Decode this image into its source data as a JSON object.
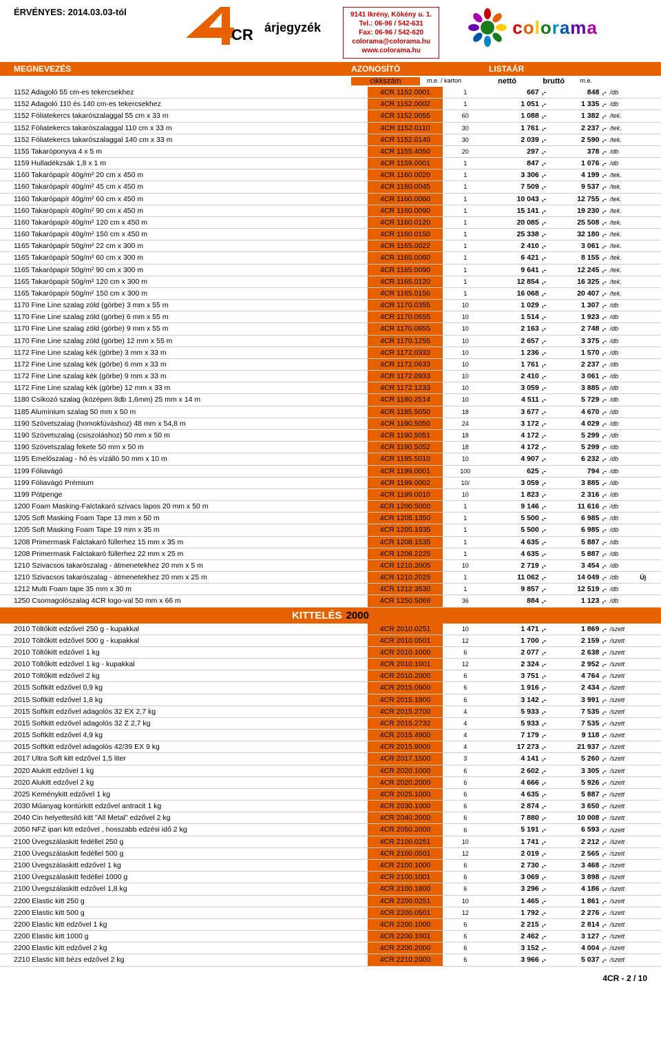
{
  "header": {
    "valid": "ÉRVÉNYES: 2014.03.03-tól",
    "pricelist": "árjegyzék",
    "address": {
      "l1": "9141 Ikrény, Kökény u. 1.",
      "l2": "Tel.: 06-96 / 542-631",
      "l3": "Fax: 06-96 / 542-620",
      "l4": "colorama@colorama.hu",
      "l5": "www.colorama.hu"
    },
    "colorama": "colorama"
  },
  "colbar": {
    "c1": "MEGNEVEZÉS",
    "c2": "AZONOSÍTÓ",
    "c3": "LISTAÁR"
  },
  "sub": {
    "s2": "cikkszám",
    "s3": "m.e. / karton",
    "s4": "nettó",
    "s5": "bruttó",
    "s6": "m.e."
  },
  "section": {
    "white": "KITTELÉS",
    "year": "2000"
  },
  "rows1": [
    {
      "n": "1152 Adagoló 55 cm-es tekercsekhez",
      "c": "4CR 1152.0001",
      "q": "1",
      "net": "667",
      "g": "848",
      "u": "/db"
    },
    {
      "n": "1152 Adagoló 110 és 140 cm-es tekercsekhez",
      "c": "4CR 1152.0002",
      "q": "1",
      "net": "1 051",
      "g": "1 335",
      "u": "/db"
    },
    {
      "n": "1152 Fóliatekercs takarószalaggal 55 cm x 33 m",
      "c": "4CR 1152.0055",
      "q": "60",
      "net": "1 088",
      "g": "1 382",
      "u": "/tek."
    },
    {
      "n": "1152 Fóliatekercs takarószalaggal 110 cm x 33 m",
      "c": "4CR 1152.0110",
      "q": "30",
      "net": "1 761",
      "g": "2 237",
      "u": "/tek."
    },
    {
      "n": "1152 Fóliatekercs takarószalaggal 140 cm x 33 m",
      "c": "4CR 1152.0140",
      "q": "30",
      "net": "2 039",
      "g": "2 590",
      "u": "/tek."
    },
    {
      "n": "1155 Takaróponyva 4 x 5 m",
      "c": "4CR 1155.4050",
      "q": "20",
      "net": "297",
      "g": "378",
      "u": "/db"
    },
    {
      "n": "1159 Hulladékzsák 1,8 x 1 m",
      "c": "4CR 1159.0001",
      "q": "1",
      "net": "847",
      "g": "1 076",
      "u": "/db"
    },
    {
      "n": "1160 Takarópapír 40g/m² 20 cm x 450 m",
      "c": "4CR 1160.0020",
      "q": "1",
      "net": "3 306",
      "g": "4 199",
      "u": "/tek."
    },
    {
      "n": "1160 Takarópapír 40g/m² 45 cm x 450 m",
      "c": "4CR 1160.0045",
      "q": "1",
      "net": "7 509",
      "g": "9 537",
      "u": "/tek."
    },
    {
      "n": "1160 Takarópapír 40g/m² 60 cm x 450 m",
      "c": "4CR 1160.0060",
      "q": "1",
      "net": "10 043",
      "g": "12 755",
      "u": "/tek."
    },
    {
      "n": "1160 Takarópapír 40g/m² 90 cm x 450 m",
      "c": "4CR 1160.0090",
      "q": "1",
      "net": "15 141",
      "g": "19 230",
      "u": "/tek."
    },
    {
      "n": "1160 Takarópapír 40g/m² 120 cm x 450 m",
      "c": "4CR 1160.0120",
      "q": "1",
      "net": "20 085",
      "g": "25 508",
      "u": "/tek."
    },
    {
      "n": "1160 Takarópapír 40g/m² 150 cm x 450 m",
      "c": "4CR 1160.0150",
      "q": "1",
      "net": "25 338",
      "g": "32 180",
      "u": "/tek."
    },
    {
      "n": "1165 Takarópapír 50g/m² 22 cm x 300 m",
      "c": "4CR 1165.0022",
      "q": "1",
      "net": "2 410",
      "g": "3 061",
      "u": "/tek."
    },
    {
      "n": "1165 Takarópapír 50g/m² 60 cm x 300 m",
      "c": "4CR 1165.0060",
      "q": "1",
      "net": "6 421",
      "g": "8 155",
      "u": "/tek."
    },
    {
      "n": "1165 Takarópapír 50g/m² 90 cm x 300 m",
      "c": "4CR 1165.0090",
      "q": "1",
      "net": "9 641",
      "g": "12 245",
      "u": "/tek."
    },
    {
      "n": "1165 Takarópapír 50g/m² 120 cm x 300 m",
      "c": "4CR 1165.0120",
      "q": "1",
      "net": "12 854",
      "g": "16 325",
      "u": "/tek."
    },
    {
      "n": "1165 Takarópapír 50g/m² 150 cm x 300 m",
      "c": "4CR 1165.0150",
      "q": "1",
      "net": "16 068",
      "g": "20 407",
      "u": "/tek."
    },
    {
      "n": "1170 Fine Line szalag zöld (görbe) 3 mm x 55 m",
      "c": "4CR 1170.0355",
      "q": "10",
      "net": "1 029",
      "g": "1 307",
      "u": "/db"
    },
    {
      "n": "1170 Fine Line szalag zöld (görbe) 6 mm x 55 m",
      "c": "4CR 1170.0655",
      "q": "10",
      "net": "1 514",
      "g": "1 923",
      "u": "/db"
    },
    {
      "n": "1170 Fine Line szalag zöld (görbe) 9 mm x 55 m",
      "c": "4CR 1170.0955",
      "q": "10",
      "net": "2 163",
      "g": "2 748",
      "u": "/db"
    },
    {
      "n": "1170 Fine Line szalag zöld (görbe) 12 mm x 55 m",
      "c": "4CR 1170.1255",
      "q": "10",
      "net": "2 657",
      "g": "3 375",
      "u": "/db"
    },
    {
      "n": "1172 Fine Line szalag kék (görbe) 3 mm x 33 m",
      "c": "4CR 1172.0333",
      "q": "10",
      "net": "1 236",
      "g": "1 570",
      "u": "/db"
    },
    {
      "n": "1172 Fine Line szalag kék (görbe) 6 mm x 33 m",
      "c": "4CR 1172.0633",
      "q": "10",
      "net": "1 761",
      "g": "2 237",
      "u": "/db"
    },
    {
      "n": "1172 Fine Line szalag kék (görbe) 9 mm x 33 m",
      "c": "4CR 1172.0933",
      "q": "10",
      "net": "2 410",
      "g": "3 061",
      "u": "/db"
    },
    {
      "n": "1172 Fine Line szalag kék (görbe) 12 mm x 33 m",
      "c": "4CR 1172.1233",
      "q": "10",
      "net": "3 059",
      "g": "3 885",
      "u": "/db"
    },
    {
      "n": "1180 Csíkozó szalag (középen 8db 1,6mm) 25 mm x 14 m",
      "c": "4CR 1180.2514",
      "q": "10",
      "net": "4 511",
      "g": "5 729",
      "u": "/db"
    },
    {
      "n": "1185 Alumínium szalag 50 mm x 50 m",
      "c": "4CR 1185.5050",
      "q": "18",
      "net": "3 677",
      "g": "4 670",
      "u": "/db"
    },
    {
      "n": "1190 Szövetszalag (homokfúváshoz) 48 mm x 54,8 m",
      "c": "4CR 1190.5050",
      "q": "24",
      "net": "3 172",
      "g": "4 029",
      "u": "/db"
    },
    {
      "n": "1190 Szövetszalag (csiszoláshoz) 50 mm x 50 m",
      "c": "4CR 1190.5051",
      "q": "18",
      "net": "4 172",
      "g": "5 299",
      "u": "/db"
    },
    {
      "n": "1190 Szövetszalag fekete 50 mm x 50 m",
      "c": "4CR 1190.5052",
      "q": "18",
      "net": "4 172",
      "g": "5 299",
      "u": "/db"
    },
    {
      "n": "1195 Emelőszalag - hő és vízálló 50 mm x 10 m",
      "c": "4CR 1195.5010",
      "q": "10",
      "net": "4 907",
      "g": "6 232",
      "u": "/db"
    },
    {
      "n": "1199 Fóliavágó",
      "c": "4CR 1199.0001",
      "q": "100",
      "net": "625",
      "g": "794",
      "u": "/db"
    },
    {
      "n": "1199 Fóliavágó Prémium",
      "c": "4CR 1199.0002",
      "q": "10/",
      "net": "3 059",
      "g": "3 885",
      "u": "/db"
    },
    {
      "n": "1199 Pótpenge",
      "c": "4CR 1199.0010",
      "q": "10",
      "net": "1 823",
      "g": "2 316",
      "u": "/db"
    },
    {
      "n": "1200 Foam Masking-Falctakaró szivacs lapos 20 mm x 50 m",
      "c": "4CR 1200.5000",
      "q": "1",
      "net": "9 146",
      "g": "11 616",
      "u": "/db"
    },
    {
      "n": "1205 Soft Masking Foam Tape 13 mm x 50 m",
      "c": "4CR 1205.1350",
      "q": "1",
      "net": "5 500",
      "g": "6 985",
      "u": "/db"
    },
    {
      "n": "1205 Soft Masking Foam Tape 19 mm x 35 m",
      "c": "4CR 1205.1935",
      "q": "1",
      "net": "5 500",
      "g": "6 985",
      "u": "/db"
    },
    {
      "n": "1208 Primermask Falctakaró füllerhez 15 mm x 35 m",
      "c": "4CR 1208.1535",
      "q": "1",
      "net": "4 635",
      "g": "5 887",
      "u": "/db"
    },
    {
      "n": "1208 Primermask Falctakaró füllerhez 22 mm x 25 m",
      "c": "4CR 1208.2225",
      "q": "1",
      "net": "4 635",
      "g": "5 887",
      "u": "/db"
    },
    {
      "n": "1210 Szivacsos takarószalag - átmenetekhez 20 mm x 5 m",
      "c": "4CR 1210.2005",
      "q": "10",
      "net": "2 719",
      "g": "3 454",
      "u": "/db"
    },
    {
      "n": "1210 Szivacsos takarószalag - átmenetekhez 20 mm x 25 m",
      "c": "4CR 1210.2025",
      "q": "1",
      "net": "11 062",
      "g": "14 049",
      "u": "/db",
      "x": "Új"
    },
    {
      "n": "1212 Multi Foam tape 35 mm x 30 m",
      "c": "4CR 1212.3530",
      "q": "1",
      "net": "9 857",
      "g": "12 519",
      "u": "/db"
    },
    {
      "n": "1250 Csomagolószalag 4CR logo-val 50 mm x 66 m",
      "c": "4CR 1250.5066",
      "q": "36",
      "net": "884",
      "g": "1 123",
      "u": "/db"
    }
  ],
  "rows2": [
    {
      "n": "2010 Töltőkitt edzővel 250 g - kupakkal",
      "c": "4CR 2010.0251",
      "q": "10",
      "net": "1 471",
      "g": "1 869",
      "u": "/szett"
    },
    {
      "n": "2010 Töltőkitt edzővel 500 g - kupakkal",
      "c": "4CR 2010.0501",
      "q": "12",
      "net": "1 700",
      "g": "2 159",
      "u": "/szett"
    },
    {
      "n": "2010 Töltőkitt edzővel 1 kg",
      "c": "4CR 2010.1000",
      "q": "6",
      "net": "2 077",
      "g": "2 638",
      "u": "/szett"
    },
    {
      "n": "2010 Töltőkitt edzővel 1 kg - kupakkal",
      "c": "4CR 2010.1001",
      "q": "12",
      "net": "2 324",
      "g": "2 952",
      "u": "/szett"
    },
    {
      "n": "2010 Töltőkitt edzővel 2 kg",
      "c": "4CR 2010.2000",
      "q": "6",
      "net": "3 751",
      "g": "4 764",
      "u": "/szett"
    },
    {
      "n": "2015 Softkitt edzővel 0,9 kg",
      "c": "4CR 2015.0900",
      "q": "6",
      "net": "1 916",
      "g": "2 434",
      "u": "/szett"
    },
    {
      "n": "2015 Softkitt edzővel 1,8 kg",
      "c": "4CR 2015.1800",
      "q": "6",
      "net": "3 142",
      "g": "3 991",
      "u": "/szett"
    },
    {
      "n": "2015 Softkitt edzővel adagolós 32 EX 2,7 kg",
      "c": "4CR 2015.2700",
      "q": "4",
      "net": "5 933",
      "g": "7 535",
      "u": "/szett"
    },
    {
      "n": "2015 Softkitt edzővel adagolós 32  Z 2,7 kg",
      "c": "4CR 2015.2732",
      "q": "4",
      "net": "5 933",
      "g": "7 535",
      "u": "/szett"
    },
    {
      "n": "2015 Softkitt edzővel 4,9 kg",
      "c": "4CR 2015.4900",
      "q": "4",
      "net": "7 179",
      "g": "9 118",
      "u": "/szett"
    },
    {
      "n": "2015 Softkitt edzővel adagolós 42/39 EX 9 kg",
      "c": "4CR 2015.9000",
      "q": "4",
      "net": "17 273",
      "g": "21 937",
      "u": "/szett"
    },
    {
      "n": "2017 Ultra Soft kitt edzővel 1,5 liter",
      "c": "4CR 2017.1500",
      "q": "3",
      "net": "4 141",
      "g": "5 260",
      "u": "/szett"
    },
    {
      "n": "2020 Alukitt edzővel 1 kg",
      "c": "4CR 2020.1000",
      "q": "6",
      "net": "2 602",
      "g": "3 305",
      "u": "/szett"
    },
    {
      "n": "2020 Alukitt edzővel 2 kg",
      "c": "4CR 2020.2000",
      "q": "6",
      "net": "4 666",
      "g": "5 926",
      "u": "/szett"
    },
    {
      "n": "2025 Keménykitt edzővel 1 kg",
      "c": "4CR 2025.1000",
      "q": "6",
      "net": "4 635",
      "g": "5 887",
      "u": "/szett"
    },
    {
      "n": "2030 Műanyag kontúrkitt edzővel antracit 1 kg",
      "c": "4CR 2030.1000",
      "q": "6",
      "net": "2 874",
      "g": "3 650",
      "u": "/szett"
    },
    {
      "n": "2040 Cin helyettesítő kitt \"All Metal\" edzővel 2 kg",
      "c": "4CR 2040.2000",
      "q": "6",
      "net": "7 880",
      "g": "10 008",
      "u": "/szett"
    },
    {
      "n": "2050 NFZ ipari kitt edzővel , hosszabb edzési idő 2 kg",
      "c": "4CR 2050.2000",
      "q": "6",
      "net": "5 191",
      "g": "6 593",
      "u": "/szett"
    },
    {
      "n": "2100 Üvegszálaskitt fedéllel 250 g",
      "c": "4CR 2100.0251",
      "q": "10",
      "net": "1 741",
      "g": "2 212",
      "u": "/szett"
    },
    {
      "n": "2100 Üvegszálaskitt fedéllel 500 g",
      "c": "4CR 2100.0501",
      "q": "12",
      "net": "2 019",
      "g": "2 565",
      "u": "/szett"
    },
    {
      "n": "2100 Üvegszálaskitt edzővel 1 kg",
      "c": "4CR 2100.1000",
      "q": "6",
      "net": "2 730",
      "g": "3 468",
      "u": "/szett"
    },
    {
      "n": "2100 Üvegszálaskitt fedéllel 1000 g",
      "c": "4CR 2100.1001",
      "q": "6",
      "net": "3 069",
      "g": "3 898",
      "u": "/szett"
    },
    {
      "n": "2100 Üvegszálaskitt edzővel 1,8 kg",
      "c": "4CR 2100.1800",
      "q": "6",
      "net": "3 296",
      "g": "4 186",
      "u": "/szett"
    },
    {
      "n": "2200 Elastic kitt 250 g",
      "c": "4CR 2200.0251",
      "q": "10",
      "net": "1 465",
      "g": "1 861",
      "u": "/szett"
    },
    {
      "n": "2200 Elastic kitt 500 g",
      "c": "4CR 2200.0501",
      "q": "12",
      "net": "1 792",
      "g": "2 276",
      "u": "/szett"
    },
    {
      "n": "2200 Elastic kitt edzővel 1 kg",
      "c": "4CR 2200.1000",
      "q": "6",
      "net": "2 215",
      "g": "2 814",
      "u": "/szett"
    },
    {
      "n": "2200 Elastic kitt 1000 g",
      "c": "4CR 2200.1001",
      "q": "6",
      "net": "2 462",
      "g": "3 127",
      "u": "/szett"
    },
    {
      "n": "2200 Elastic kitt edzővel 2 kg",
      "c": "4CR 2200.2000",
      "q": "6",
      "net": "3 152",
      "g": "4 004",
      "u": "/szett"
    },
    {
      "n": "2210 Elastic kitt bézs edzővel 2 kg",
      "c": "4CR 2210.2000",
      "q": "6",
      "net": "3 966",
      "g": "5 037",
      "u": "/szett"
    }
  ],
  "footer": "4CR - 2 / 10",
  "style": {
    "accent": "#e86100",
    "border": "#ccc",
    "address_color": "#c00"
  }
}
